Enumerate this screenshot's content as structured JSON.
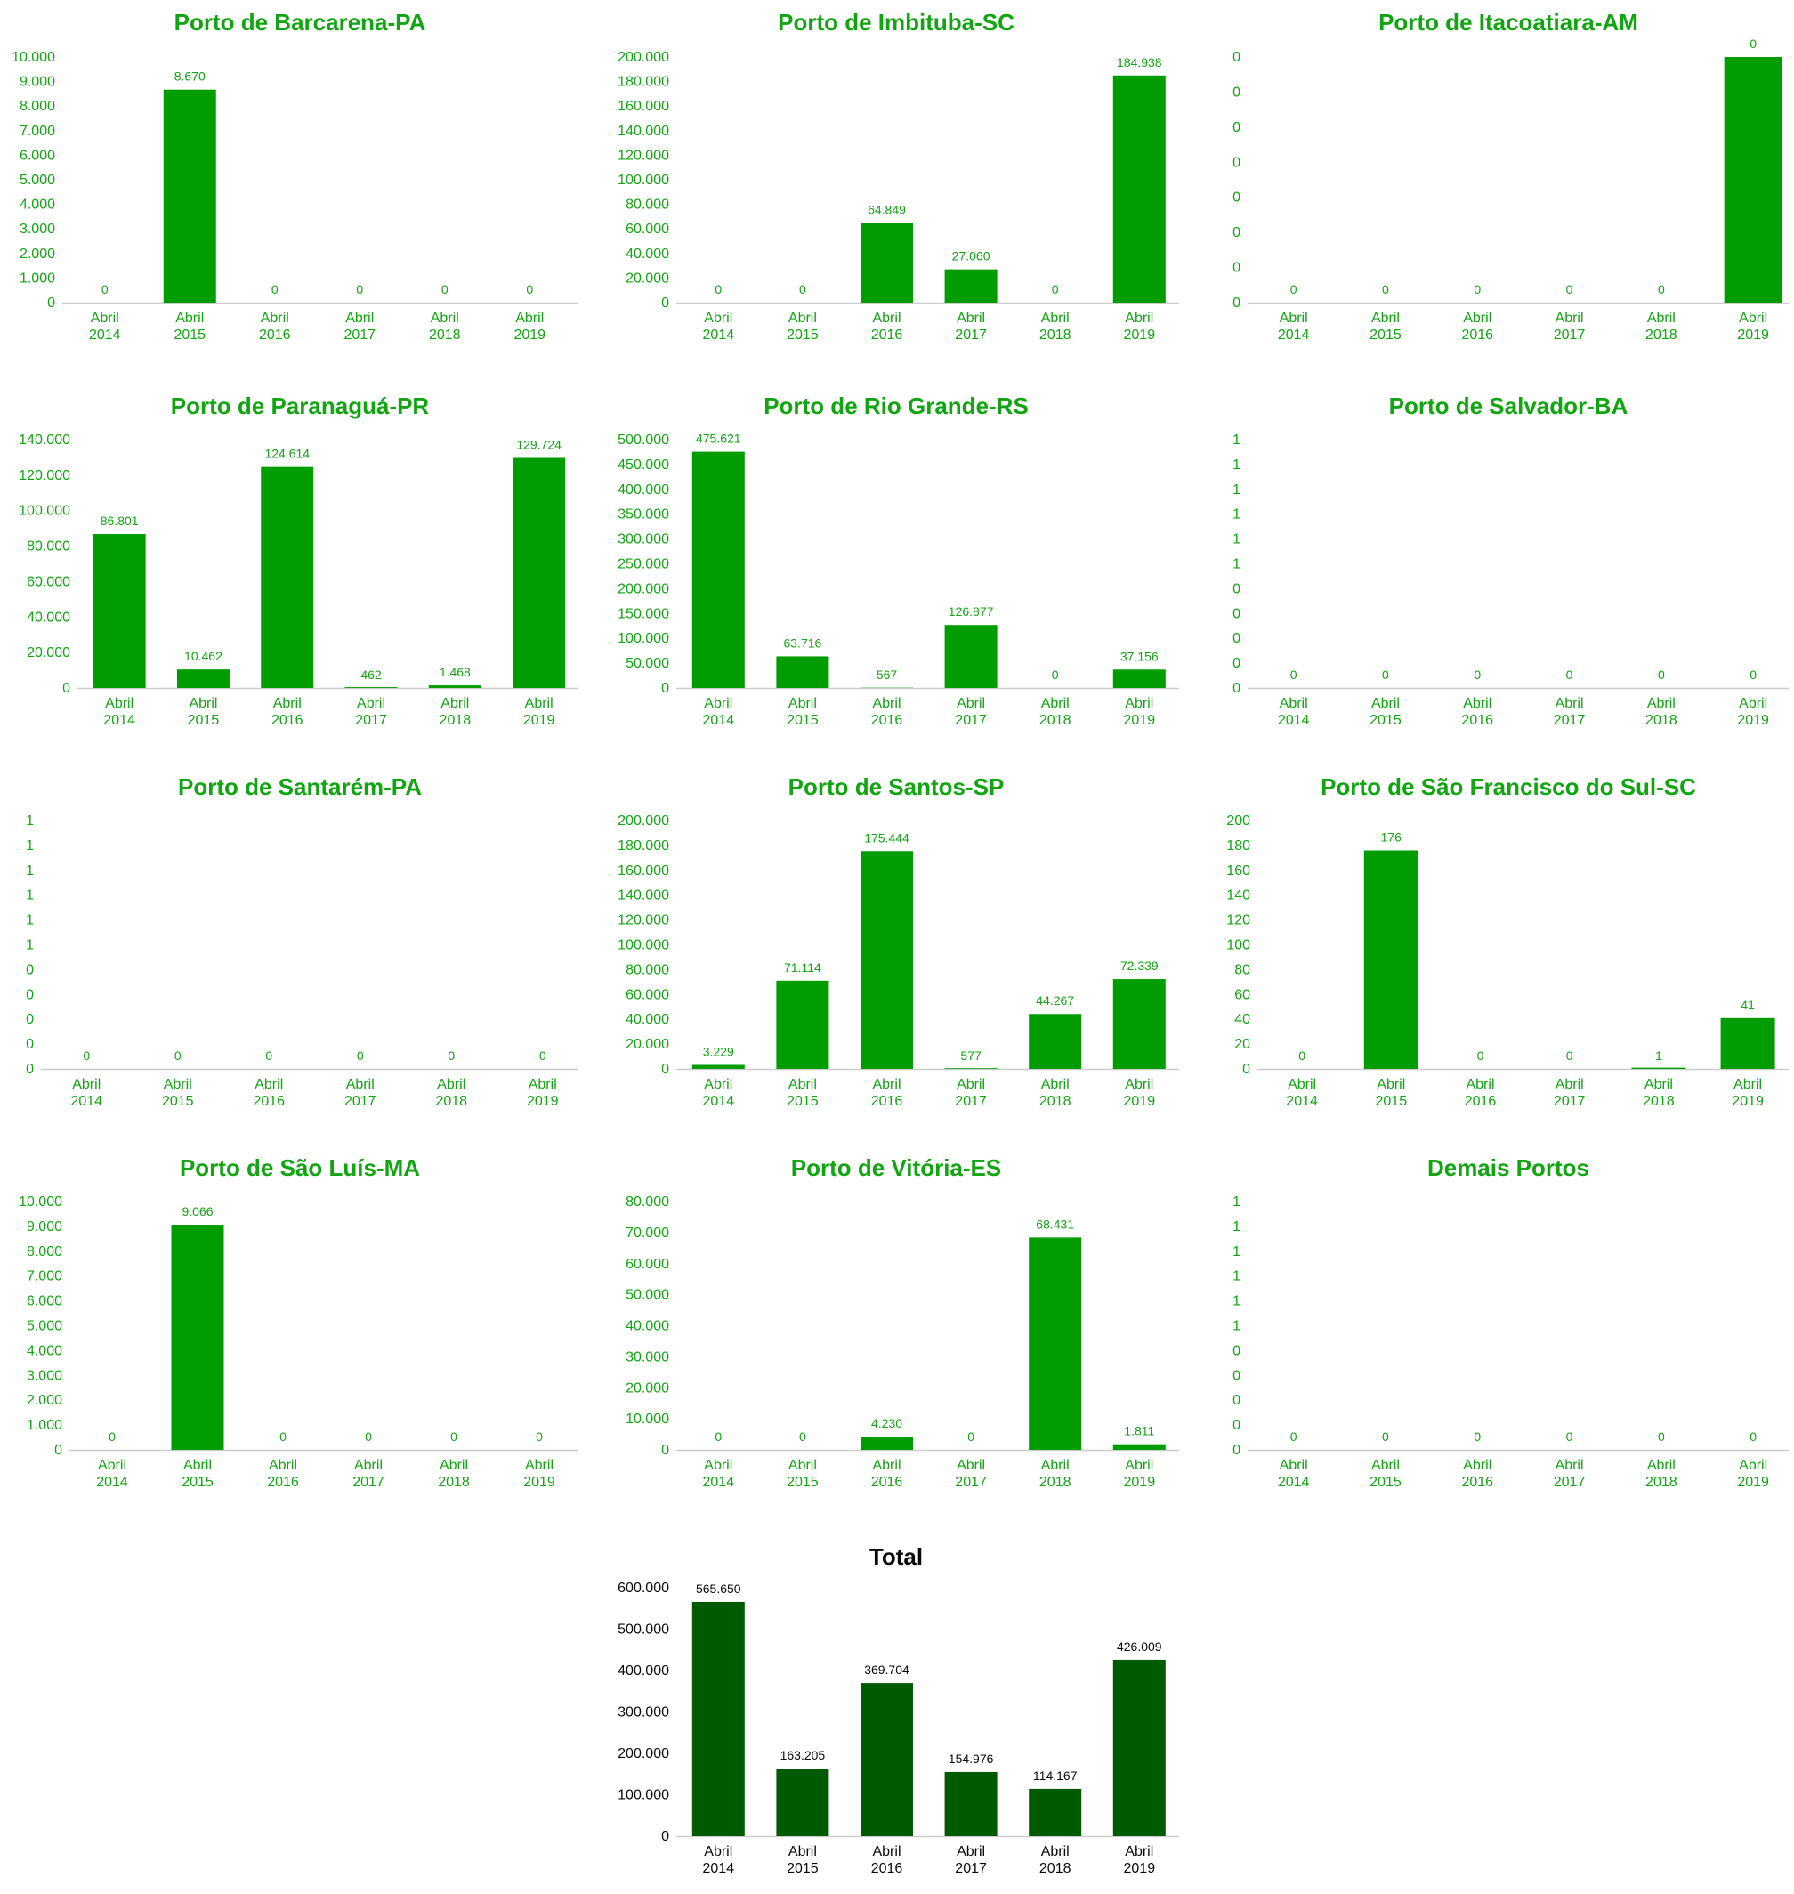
{
  "colors": {
    "port_text": "#11a511",
    "port_bar": "#009c00",
    "total_text": "#0a0a0a",
    "total_bar": "#005a00",
    "axis": "#cccccc"
  },
  "chart_data": [
    {
      "type": "bar",
      "title": "Porto de Barcarena-PA",
      "categories": [
        "Abril|2014",
        "Abril|2015",
        "Abril|2016",
        "Abril|2017",
        "Abril|2018",
        "Abril|2019"
      ],
      "values": [
        0,
        8670,
        0,
        0,
        0,
        0
      ],
      "value_labels": [
        "0",
        "8.670",
        "0",
        "0",
        "0",
        "0"
      ],
      "ylim": [
        0,
        10000
      ],
      "yticks": [
        "0",
        "1.000",
        "2.000",
        "3.000",
        "4.000",
        "5.000",
        "6.000",
        "7.000",
        "8.000",
        "9.000",
        "10.000"
      ],
      "grid": false,
      "style": "port"
    },
    {
      "type": "bar",
      "title": "Porto de Imbituba-SC",
      "categories": [
        "Abril|2014",
        "Abril|2015",
        "Abril|2016",
        "Abril|2017",
        "Abril|2018",
        "Abril|2019"
      ],
      "values": [
        0,
        0,
        64849,
        27060,
        0,
        184938
      ],
      "value_labels": [
        "0",
        "0",
        "64.849",
        "27.060",
        "0",
        "184.938"
      ],
      "ylim": [
        0,
        200000
      ],
      "yticks": [
        "0",
        "20.000",
        "40.000",
        "60.000",
        "80.000",
        "100.000",
        "120.000",
        "140.000",
        "160.000",
        "180.000",
        "200.000"
      ],
      "grid": false,
      "style": "port"
    },
    {
      "type": "bar",
      "title": "Porto de Itacoatiara-AM",
      "categories": [
        "Abril|2014",
        "Abril|2015",
        "Abril|2016",
        "Abril|2017",
        "Abril|2018",
        "Abril|2019"
      ],
      "values": [
        0,
        0,
        0,
        0,
        0,
        0.35
      ],
      "value_labels": [
        "0",
        "0",
        "0",
        "0",
        "0",
        "0"
      ],
      "ylim": [
        0,
        0.35
      ],
      "yticks": [
        "0",
        "0",
        "0",
        "0",
        "0",
        "0",
        "0",
        "0"
      ],
      "grid": false,
      "style": "port"
    },
    {
      "type": "bar",
      "title": "Porto de Paranaguá-PR",
      "categories": [
        "Abril|2014",
        "Abril|2015",
        "Abril|2016",
        "Abril|2017",
        "Abril|2018",
        "Abril|2019"
      ],
      "values": [
        86801,
        10462,
        124614,
        462,
        1468,
        129724
      ],
      "value_labels": [
        "86.801",
        "10.462",
        "124.614",
        "462",
        "1.468",
        "129.724"
      ],
      "ylim": [
        0,
        140000
      ],
      "yticks": [
        "0",
        "20.000",
        "40.000",
        "60.000",
        "80.000",
        "100.000",
        "120.000",
        "140.000"
      ],
      "grid": false,
      "style": "port"
    },
    {
      "type": "bar",
      "title": "Porto de Rio Grande-RS",
      "categories": [
        "Abril|2014",
        "Abril|2015",
        "Abril|2016",
        "Abril|2017",
        "Abril|2018",
        "Abril|2019"
      ],
      "values": [
        475621,
        63716,
        567,
        126877,
        0,
        37156
      ],
      "value_labels": [
        "475.621",
        "63.716",
        "567",
        "126.877",
        "0",
        "37.156"
      ],
      "ylim": [
        0,
        500000
      ],
      "yticks": [
        "0",
        "50.000",
        "100.000",
        "150.000",
        "200.000",
        "250.000",
        "300.000",
        "350.000",
        "400.000",
        "450.000",
        "500.000"
      ],
      "grid": false,
      "style": "port"
    },
    {
      "type": "bar",
      "title": "Porto de Salvador-BA",
      "categories": [
        "Abril|2014",
        "Abril|2015",
        "Abril|2016",
        "Abril|2017",
        "Abril|2018",
        "Abril|2019"
      ],
      "values": [
        0,
        0,
        0,
        0,
        0,
        0
      ],
      "value_labels": [
        "0",
        "0",
        "0",
        "0",
        "0",
        "0"
      ],
      "ylim": [
        0,
        1
      ],
      "yticks": [
        "0",
        "0",
        "0",
        "0",
        "0",
        "1",
        "1",
        "1",
        "1",
        "1",
        "1"
      ],
      "grid": false,
      "style": "port"
    },
    {
      "type": "bar",
      "title": "Porto de Santarém-PA",
      "categories": [
        "Abril|2014",
        "Abril|2015",
        "Abril|2016",
        "Abril|2017",
        "Abril|2018",
        "Abril|2019"
      ],
      "values": [
        0,
        0,
        0,
        0,
        0,
        0
      ],
      "value_labels": [
        "0",
        "0",
        "0",
        "0",
        "0",
        "0"
      ],
      "ylim": [
        0,
        1
      ],
      "yticks": [
        "0",
        "0",
        "0",
        "0",
        "0",
        "1",
        "1",
        "1",
        "1",
        "1",
        "1"
      ],
      "grid": false,
      "style": "port"
    },
    {
      "type": "bar",
      "title": "Porto de Santos-SP",
      "categories": [
        "Abril|2014",
        "Abril|2015",
        "Abril|2016",
        "Abril|2017",
        "Abril|2018",
        "Abril|2019"
      ],
      "values": [
        3229,
        71114,
        175444,
        577,
        44267,
        72339
      ],
      "value_labels": [
        "3.229",
        "71.114",
        "175.444",
        "577",
        "44.267",
        "72.339"
      ],
      "ylim": [
        0,
        200000
      ],
      "yticks": [
        "0",
        "20.000",
        "40.000",
        "60.000",
        "80.000",
        "100.000",
        "120.000",
        "140.000",
        "160.000",
        "180.000",
        "200.000"
      ],
      "grid": false,
      "style": "port"
    },
    {
      "type": "bar",
      "title": "Porto de São Francisco do Sul-SC",
      "categories": [
        "Abril|2014",
        "Abril|2015",
        "Abril|2016",
        "Abril|2017",
        "Abril|2018",
        "Abril|2019"
      ],
      "values": [
        0,
        176,
        0,
        0,
        1,
        41
      ],
      "value_labels": [
        "0",
        "176",
        "0",
        "0",
        "1",
        "41"
      ],
      "ylim": [
        0,
        200
      ],
      "yticks": [
        "0",
        "20",
        "40",
        "60",
        "80",
        "100",
        "120",
        "140",
        "160",
        "180",
        "200"
      ],
      "grid": false,
      "style": "port"
    },
    {
      "type": "bar",
      "title": "Porto de São Luís-MA",
      "categories": [
        "Abril|2014",
        "Abril|2015",
        "Abril|2016",
        "Abril|2017",
        "Abril|2018",
        "Abril|2019"
      ],
      "values": [
        0,
        9066,
        0,
        0,
        0,
        0
      ],
      "value_labels": [
        "0",
        "9.066",
        "0",
        "0",
        "0",
        "0"
      ],
      "ylim": [
        0,
        10000
      ],
      "yticks": [
        "0",
        "1.000",
        "2.000",
        "3.000",
        "4.000",
        "5.000",
        "6.000",
        "7.000",
        "8.000",
        "9.000",
        "10.000"
      ],
      "grid": false,
      "style": "port"
    },
    {
      "type": "bar",
      "title": "Porto de Vitória-ES",
      "categories": [
        "Abril|2014",
        "Abril|2015",
        "Abril|2016",
        "Abril|2017",
        "Abril|2018",
        "Abril|2019"
      ],
      "values": [
        0,
        0,
        4230,
        0,
        68431,
        1811
      ],
      "value_labels": [
        "0",
        "0",
        "4.230",
        "0",
        "68.431",
        "1.811"
      ],
      "ylim": [
        0,
        80000
      ],
      "yticks": [
        "0",
        "10.000",
        "20.000",
        "30.000",
        "40.000",
        "50.000",
        "60.000",
        "70.000",
        "80.000"
      ],
      "grid": false,
      "style": "port"
    },
    {
      "type": "bar",
      "title": "Demais Portos",
      "categories": [
        "Abril|2014",
        "Abril|2015",
        "Abril|2016",
        "Abril|2017",
        "Abril|2018",
        "Abril|2019"
      ],
      "values": [
        0,
        0,
        0,
        0,
        0,
        0
      ],
      "value_labels": [
        "0",
        "0",
        "0",
        "0",
        "0",
        "0"
      ],
      "ylim": [
        0,
        1
      ],
      "yticks": [
        "0",
        "0",
        "0",
        "0",
        "0",
        "1",
        "1",
        "1",
        "1",
        "1",
        "1"
      ],
      "grid": false,
      "style": "port"
    },
    {
      "type": "bar",
      "title": "Total",
      "categories": [
        "Abril|2014",
        "Abril|2015",
        "Abril|2016",
        "Abril|2017",
        "Abril|2018",
        "Abril|2019"
      ],
      "values": [
        565650,
        163205,
        369704,
        154976,
        114167,
        426009
      ],
      "value_labels": [
        "565.650",
        "163.205",
        "369.704",
        "154.976",
        "114.167",
        "426.009"
      ],
      "ylim": [
        0,
        600000
      ],
      "yticks": [
        "0",
        "100.000",
        "200.000",
        "300.000",
        "400.000",
        "500.000",
        "600.000"
      ],
      "grid": false,
      "style": "total"
    }
  ]
}
